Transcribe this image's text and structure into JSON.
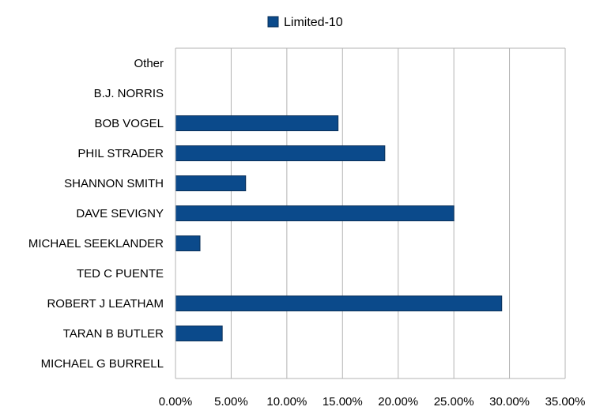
{
  "chart_data": {
    "type": "bar",
    "orientation": "horizontal",
    "title": "",
    "xlabel": "",
    "ylabel": "",
    "categories": [
      "MICHAEL G BURRELL",
      "TARAN B BUTLER",
      "ROBERT J LEATHAM",
      "TED C PUENTE",
      "MICHAEL SEEKLANDER",
      "DAVE SEVIGNY",
      "SHANNON SMITH",
      "PHIL STRADER",
      "BOB VOGEL",
      "B.J. NORRIS",
      "Other"
    ],
    "series": [
      {
        "name": "Limited-10",
        "color": "#0b4a8b",
        "values": [
          0.0,
          4.2,
          29.3,
          0.0,
          2.2,
          25.0,
          6.3,
          18.8,
          14.6,
          0.0,
          0.0
        ]
      }
    ],
    "xlim": [
      0,
      35
    ],
    "xticks": [
      "0.00%",
      "5.00%",
      "10.00%",
      "15.00%",
      "20.00%",
      "25.00%",
      "30.00%",
      "35.00%"
    ],
    "grid": true,
    "legend_position": "top-center"
  }
}
